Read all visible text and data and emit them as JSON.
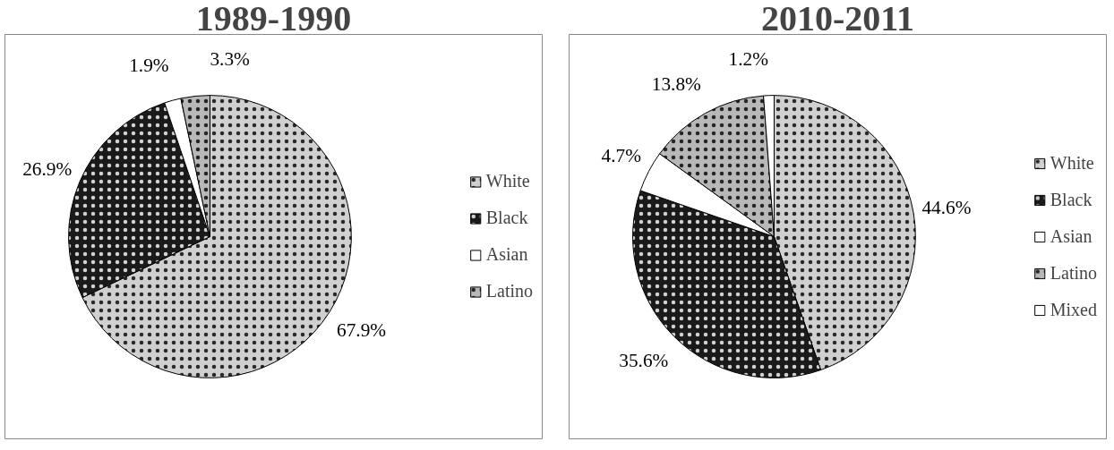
{
  "chart_data": [
    {
      "type": "pie",
      "title": "1989-1990",
      "categories": [
        "White",
        "Black",
        "Asian",
        "Latino"
      ],
      "values": [
        67.9,
        26.9,
        1.9,
        3.3
      ],
      "colors": [
        "#d0d0d0",
        "#1a1a1a",
        "#ffffff",
        "#b8b8b8"
      ],
      "value_labels": [
        "67.9%",
        "26.9%",
        "1.9%",
        "3.3%"
      ],
      "legend": "right"
    },
    {
      "type": "pie",
      "title": "2010-2011",
      "categories": [
        "White",
        "Black",
        "Asian",
        "Latino",
        "Mixed"
      ],
      "values": [
        44.6,
        35.6,
        4.7,
        13.8,
        1.2
      ],
      "colors": [
        "#d0d0d0",
        "#1a1a1a",
        "#ffffff",
        "#b8b8b8",
        "#ffffff"
      ],
      "value_labels": [
        "44.6%",
        "35.6%",
        "4.7%",
        "13.8%",
        "1.2%"
      ],
      "legend": "right"
    }
  ]
}
